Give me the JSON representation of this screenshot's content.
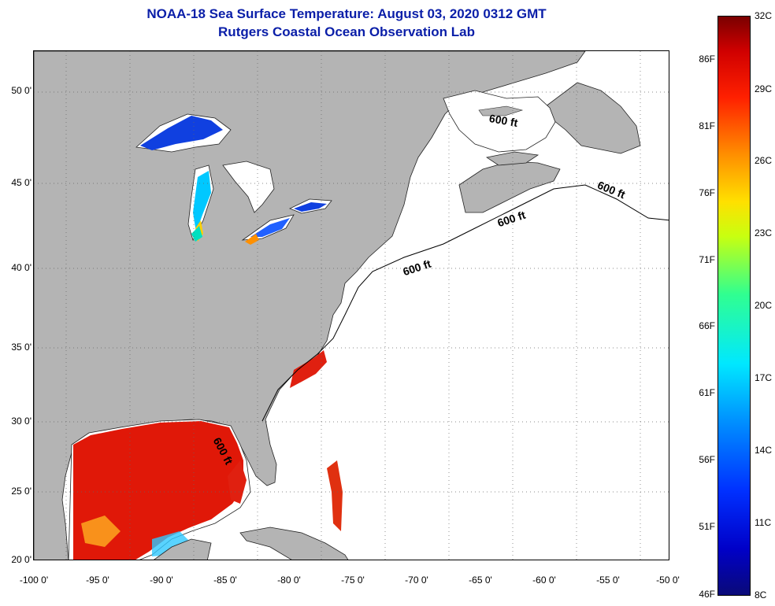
{
  "header": {
    "title_line1": "NOAA-18 Sea Surface Temperature:  August 03, 2020 0312 GMT",
    "title_line2": "Rutgers Coastal Ocean Observation Lab"
  },
  "map": {
    "lat_labels": [
      "50 0'",
      "45 0'",
      "40 0'",
      "35 0'",
      "30 0'",
      "25 0'",
      "20 0'"
    ],
    "lon_labels": [
      "-100 0'",
      "-95 0'",
      "-90 0'",
      "-85 0'",
      "-80 0'",
      "-75 0'",
      "-70 0'",
      "-65 0'",
      "-60 0'",
      "-55 0'",
      "-50 0'"
    ],
    "contour_label": "600 ft",
    "colors": {
      "land": "#b4b4b4",
      "ocean_no_data": "#ffffff",
      "warm_water": "#e01808",
      "cool_lake": "#1040e0"
    }
  },
  "colorbar": {
    "celsius_labels": [
      "32C",
      "29C",
      "26C",
      "23C",
      "20C",
      "17C",
      "14C",
      "11C",
      "8C"
    ],
    "fahrenheit_labels": [
      "86F",
      "81F",
      "76F",
      "71F",
      "66F",
      "61F",
      "56F",
      "51F",
      "46F"
    ]
  }
}
